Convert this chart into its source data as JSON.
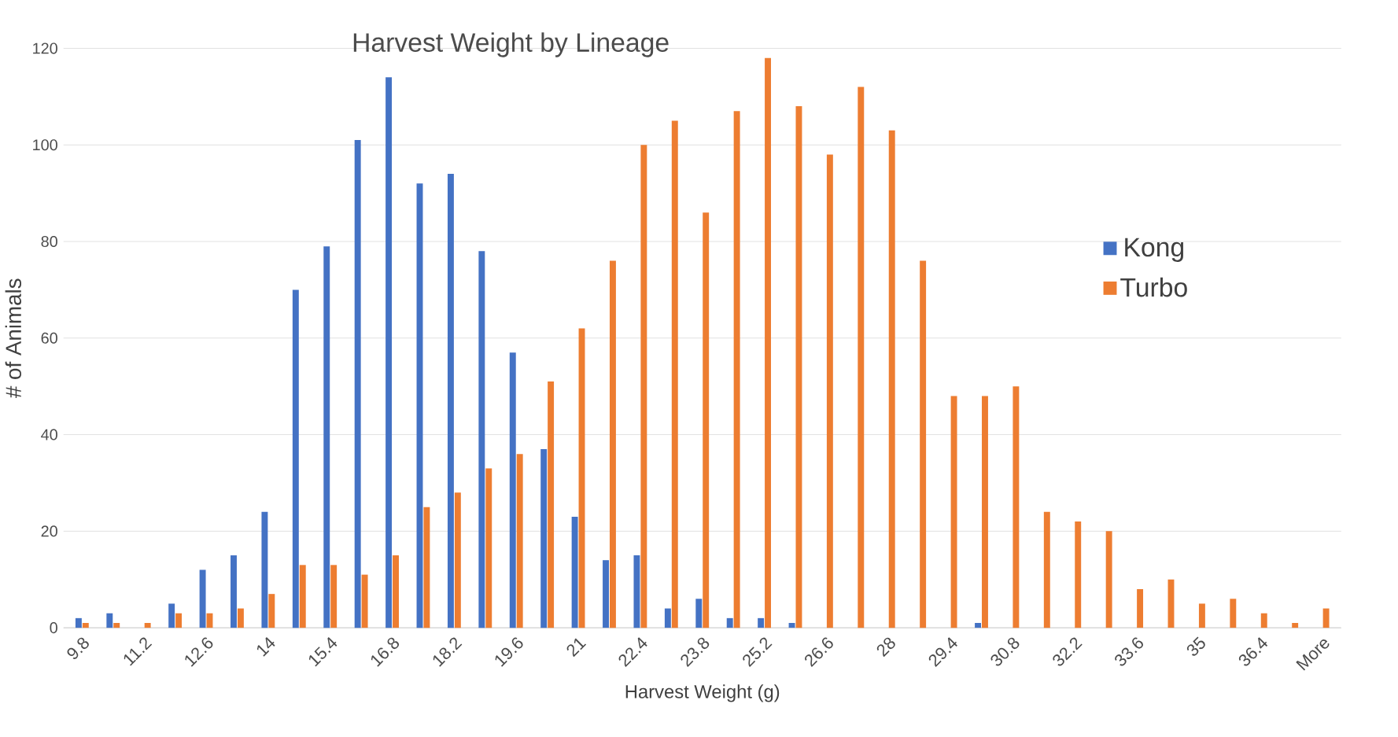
{
  "chart_data": {
    "type": "bar",
    "title": "Harvest Weight by Lineage",
    "xlabel": "Harvest Weight (g)",
    "ylabel": "# of Animals",
    "categories": [
      "9.8",
      null,
      "11.2",
      null,
      "12.6",
      null,
      "14",
      null,
      "15.4",
      null,
      "16.8",
      null,
      "18.2",
      null,
      "19.6",
      null,
      "21",
      null,
      "22.4",
      null,
      "23.8",
      null,
      "25.2",
      null,
      "26.6",
      null,
      "28",
      null,
      "29.4",
      null,
      "30.8",
      null,
      "32.2",
      null,
      "33.6",
      null,
      "35",
      null,
      "36.4",
      null,
      "More"
    ],
    "series": [
      {
        "name": "Kong",
        "color": "#4472c4",
        "values": [
          2,
          3,
          0,
          5,
          12,
          15,
          24,
          70,
          79,
          101,
          114,
          92,
          94,
          78,
          57,
          37,
          23,
          14,
          15,
          4,
          6,
          2,
          2,
          1,
          0,
          0,
          0,
          0,
          0,
          1,
          0,
          0,
          0,
          0,
          0,
          0,
          0,
          0,
          0,
          0,
          0
        ]
      },
      {
        "name": "Turbo",
        "color": "#ed7d31",
        "values": [
          1,
          1,
          1,
          3,
          3,
          4,
          7,
          13,
          13,
          11,
          15,
          25,
          28,
          33,
          36,
          51,
          62,
          76,
          100,
          105,
          86,
          107,
          118,
          108,
          98,
          112,
          103,
          76,
          48,
          48,
          50,
          24,
          22,
          20,
          8,
          10,
          5,
          6,
          3,
          1,
          4
        ]
      }
    ],
    "ylim": [
      0,
      120
    ],
    "yticks": [
      0,
      20,
      40,
      60,
      80,
      100,
      120
    ],
    "grid": "y",
    "legend": "right"
  }
}
